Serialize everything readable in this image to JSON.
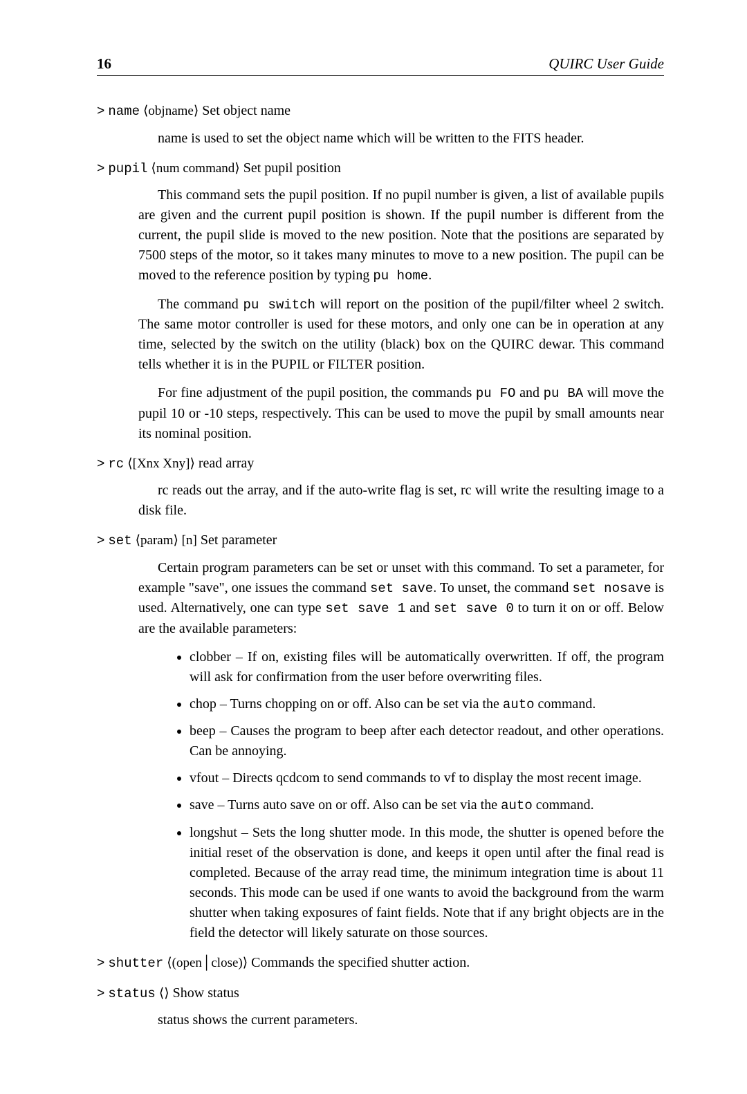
{
  "header": {
    "page_number": "16",
    "title": "QUIRC User Guide"
  },
  "commands": [
    {
      "prompt": ">",
      "name_tt": "name",
      "arg": "⟨objname⟩",
      "summary": " Set object name",
      "paragraphs": [
        "name is used to set the object name which will be written to the FITS header."
      ]
    },
    {
      "prompt": ">",
      "name_tt": "pupil",
      "arg": "⟨num command⟩",
      "summary": " Set pupil position",
      "paragraphs": [
        "This command sets the pupil position. If no pupil number is given, a list of available pupils are given and the current pupil position is shown. If the pupil number is different from the current, the pupil slide is moved to the new position. Note that the positions are separated by 7500 steps of the motor, so it takes many minutes to move to a new position. The pupil can be moved to the reference position by typing ",
        "The command ",
        "For fine adjustment of the pupil position, the commands "
      ],
      "p1_tail_tt": "pu home",
      "p1_tail": ".",
      "p2_mid_tt": "pu switch",
      "p2_tail": " will report on the position of the pupil/filter wheel 2 switch. The same motor controller is used for these motors, and only one can be in operation at any time, selected by the switch on the utility (black) box on the QUIRC dewar. This command tells whether it is in the PUPIL or FILTER position.",
      "p3_mid_tt1": "pu FO",
      "p3_mid": " and ",
      "p3_mid_tt2": "pu BA",
      "p3_tail": " will move the pupil 10 or -10 steps, respectively. This can be used to move the pupil by small amounts near its nominal position."
    },
    {
      "prompt": ">",
      "name_tt": "rc",
      "arg": "⟨[Xnx Xny]⟩",
      "summary": " read array",
      "paragraphs": [
        "rc reads out the array, and if the auto-write flag is set, rc will write the resulting image to a disk file."
      ]
    },
    {
      "prompt": ">",
      "name_tt": "set",
      "arg": "⟨param⟩ [n]",
      "summary": " Set parameter",
      "p1_pre": "Certain program parameters can be set or unset with this command. To set a parameter, for example \"save\", one issues the command ",
      "p1_tt1": "set save",
      "p1_mid1": ". To unset, the command ",
      "p1_tt2": "set nosave",
      "p1_mid2": " is used. Alternatively, one can type ",
      "p1_tt3": "set save 1",
      "p1_mid3": " and ",
      "p1_tt4": "set save 0",
      "p1_tail": " to turn it on or off. Below are the available parameters:",
      "bullets": [
        {
          "text": "clobber – If on, existing files will be automatically overwritten. If off, the program will ask for confirmation from the user before overwriting files."
        },
        {
          "pre": "chop – Turns chopping on or off. Also can be set via the ",
          "tt": "auto",
          "post": " command."
        },
        {
          "text": "beep – Causes the program to beep after each detector readout, and other operations. Can be annoying."
        },
        {
          "text": "vfout – Directs qcdcom to send commands to vf to display the most recent image."
        },
        {
          "pre": "save – Turns auto save on or off. Also can be set via the ",
          "tt": "auto",
          "post": " command."
        },
        {
          "text": "longshut – Sets the long shutter mode. In this mode, the shutter is opened before the initial reset of the observation is done, and keeps it open until after the final read is completed. Because of the array read time, the minimum integration time is about 11 seconds. This mode can be used if one wants to avoid the background from the warm shutter when taking exposures of faint fields. Note that if any bright objects are in the field the detector will likely saturate on those sources."
        }
      ]
    },
    {
      "prompt": ">",
      "name_tt": "shutter",
      "arg": "⟨(open│close)⟩",
      "summary": " Commands the specified shutter action."
    },
    {
      "prompt": ">",
      "name_tt": "status",
      "arg": "⟨⟩",
      "summary": " Show status",
      "paragraphs": [
        "status shows the current parameters."
      ]
    }
  ]
}
